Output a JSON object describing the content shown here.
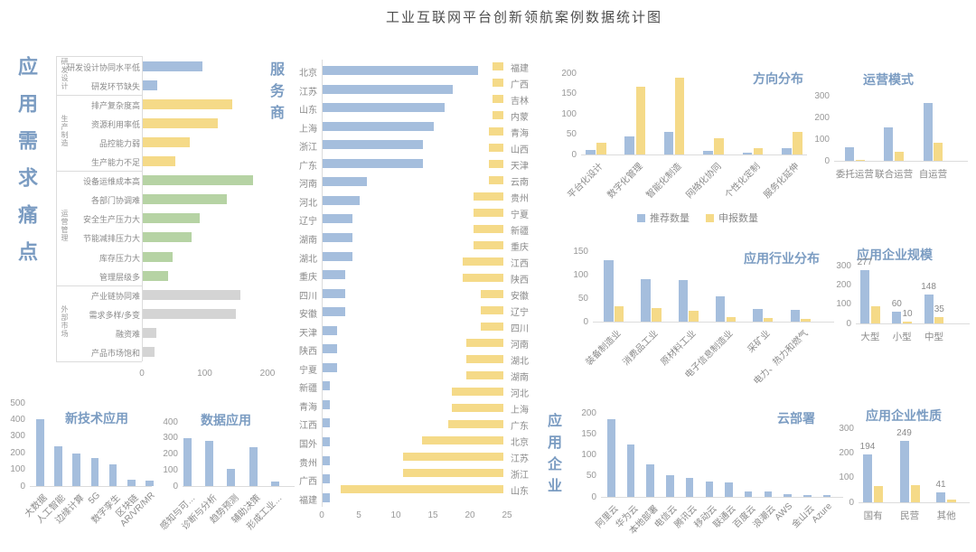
{
  "page_title": "工业互联网平台创新领航案例数据统计图",
  "colors": {
    "bar_blue": "#a5bedd",
    "bar_yellow": "#f5da88",
    "bar_green": "#b6d3a4",
    "bar_gray": "#d4d4d4",
    "title_accent": "#7b9cc2",
    "axis_text": "#999999"
  },
  "legend": {
    "items": [
      {
        "label": "推荐数量",
        "color": "#a5bedd"
      },
      {
        "label": "申报数量",
        "color": "#f5da88"
      }
    ]
  },
  "chart_data": [
    {
      "id": "demand-pain-points",
      "type": "bar",
      "orientation": "horizontal",
      "title": "应用需求痛点",
      "xlim": [
        0,
        200
      ],
      "xticks": [
        0,
        100,
        200
      ],
      "groups": [
        {
          "name": "研发设计",
          "color": "#a5bedd",
          "items": [
            {
              "label": "研发设计协同水平低",
              "value": 95
            },
            {
              "label": "研发环节缺失",
              "value": 23
            }
          ]
        },
        {
          "name": "生产制造",
          "color": "#f5da88",
          "items": [
            {
              "label": "排产复杂度高",
              "value": 142
            },
            {
              "label": "资源利用率低",
              "value": 120
            },
            {
              "label": "品控能力弱",
              "value": 75
            },
            {
              "label": "生产能力不足",
              "value": 52
            }
          ]
        },
        {
          "name": "运营管理",
          "color": "#b6d3a4",
          "items": [
            {
              "label": "设备运维成本高",
              "value": 175
            },
            {
              "label": "各部门协调难",
              "value": 134
            },
            {
              "label": "安全生产压力大",
              "value": 90
            },
            {
              "label": "节能减排压力大",
              "value": 78
            },
            {
              "label": "库存压力大",
              "value": 48
            },
            {
              "label": "管理层级多",
              "value": 40
            }
          ]
        },
        {
          "name": "外部市场",
          "color": "#d4d4d4",
          "items": [
            {
              "label": "产业链协同难",
              "value": 155
            },
            {
              "label": "需求多样/多变",
              "value": 148
            },
            {
              "label": "融资难",
              "value": 21
            },
            {
              "label": "产品市场饱和",
              "value": 18
            }
          ]
        }
      ]
    },
    {
      "id": "service-providers",
      "type": "bar",
      "orientation": "horizontal",
      "title": "服务商",
      "color": "#a5bedd",
      "xlim": [
        0,
        25
      ],
      "xticks": [
        0,
        5,
        10,
        15,
        20,
        25
      ],
      "categories": [
        "北京",
        "江苏",
        "山东",
        "上海",
        "浙江",
        "广东",
        "河南",
        "河北",
        "辽宁",
        "湖南",
        "湖北",
        "重庆",
        "四川",
        "安徽",
        "天津",
        "陕西",
        "宁夏",
        "新疆",
        "青海",
        "江西",
        "国外",
        "贵州",
        "广西",
        "福建"
      ],
      "values": [
        21,
        17.5,
        16.5,
        15,
        13.5,
        13.5,
        6,
        5,
        4,
        4,
        4,
        3,
        3,
        3,
        2,
        2,
        2,
        1,
        1,
        1,
        1,
        1,
        1,
        1
      ]
    },
    {
      "id": "application-enterprises",
      "type": "bar",
      "orientation": "horizontal-mirrored",
      "title": "应用企业",
      "color": "#f5da88",
      "xlim": [
        0,
        25
      ],
      "categories": [
        "福建",
        "广西",
        "吉林",
        "内蒙",
        "青海",
        "山西",
        "天津",
        "云南",
        "贵州",
        "宁夏",
        "新疆",
        "重庆",
        "江西",
        "陕西",
        "安徽",
        "辽宁",
        "四川",
        "河南",
        "湖北",
        "湖南",
        "河北",
        "上海",
        "广东",
        "北京",
        "江苏",
        "浙江",
        "山东"
      ],
      "values": [
        1.5,
        1.5,
        1.5,
        1.5,
        2,
        2,
        2,
        2,
        4,
        4,
        4,
        4,
        5.5,
        5.5,
        3,
        3,
        3,
        5,
        5,
        5,
        7,
        7,
        7.5,
        11,
        13.5,
        13.5,
        22
      ]
    },
    {
      "id": "direction-distribution",
      "type": "bar",
      "title": "方向分布",
      "ylim": [
        0,
        200
      ],
      "yticks": [
        0,
        50,
        100,
        150,
        200
      ],
      "categories": [
        "平台化设计",
        "数字化管理",
        "智能化制造",
        "网络化协同",
        "个性化定制",
        "服务化延伸"
      ],
      "series": [
        {
          "name": "推荐数量",
          "color": "#a5bedd",
          "values": [
            12,
            45,
            55,
            10,
            4,
            15
          ]
        },
        {
          "name": "申报数量",
          "color": "#f5da88",
          "values": [
            30,
            167,
            190,
            40,
            16,
            55
          ]
        }
      ]
    },
    {
      "id": "operation-mode",
      "type": "bar",
      "title": "运营模式",
      "ylim": [
        0,
        300
      ],
      "yticks": [
        0,
        100,
        200,
        300
      ],
      "categories": [
        "委托运营",
        "联合运营",
        "自运营"
      ],
      "series": [
        {
          "name": "推荐数量",
          "color": "#a5bedd",
          "values": [
            62,
            155,
            268
          ]
        },
        {
          "name": "申报数量",
          "color": "#f5da88",
          "values": [
            6,
            40,
            82
          ]
        }
      ]
    },
    {
      "id": "industry-distribution",
      "type": "bar",
      "title": "应用行业分布",
      "ylim": [
        0,
        150
      ],
      "yticks": [
        0,
        50,
        100,
        150
      ],
      "categories": [
        "装备制造业",
        "消费品工业",
        "原材料工业",
        "电子信息制造业",
        "采矿业",
        "电力、热力和燃气"
      ],
      "series": [
        {
          "name": "推荐数量",
          "color": "#a5bedd",
          "values": [
            131,
            90,
            88,
            54,
            26,
            25
          ]
        },
        {
          "name": "申报数量",
          "color": "#f5da88",
          "values": [
            32,
            29,
            23,
            10,
            8,
            6
          ]
        }
      ]
    },
    {
      "id": "enterprise-scale",
      "type": "bar",
      "title": "应用企业规模",
      "ylim": [
        0,
        300
      ],
      "yticks": [
        0,
        100,
        200,
        300
      ],
      "categories": [
        "大型",
        "小型",
        "中型"
      ],
      "series": [
        {
          "name": "推荐数量",
          "color": "#a5bedd",
          "values": [
            277,
            60,
            148
          ],
          "value_labels": [
            "277",
            "60",
            "148"
          ]
        },
        {
          "name": "申报数量",
          "color": "#f5da88",
          "values": [
            88,
            10,
            35
          ],
          "value_labels": [
            "",
            "10",
            "35"
          ]
        }
      ]
    },
    {
      "id": "cloud-deployment",
      "type": "bar",
      "title": "云部署",
      "color": "#a5bedd",
      "ylim": [
        0,
        200
      ],
      "yticks": [
        0,
        50,
        100,
        150,
        200
      ],
      "categories": [
        "阿里云",
        "华为云",
        "本地部署",
        "电信云",
        "腾讯云",
        "移动云",
        "联通云",
        "百度云",
        "浪潮云",
        "AWS",
        "金山云",
        "Azure"
      ],
      "values": [
        185,
        125,
        78,
        51,
        45,
        36,
        34,
        12,
        12,
        6,
        4,
        4
      ]
    },
    {
      "id": "enterprise-nature",
      "type": "bar",
      "title": "应用企业性质",
      "ylim": [
        0,
        300
      ],
      "yticks": [
        0,
        100,
        200,
        300
      ],
      "categories": [
        "国有",
        "民营",
        "其他"
      ],
      "series": [
        {
          "name": "推荐数量",
          "color": "#a5bedd",
          "values": [
            194,
            249,
            41
          ],
          "value_labels": [
            "194",
            "249",
            "41"
          ]
        },
        {
          "name": "申报数量",
          "color": "#f5da88",
          "values": [
            65,
            68,
            12
          ],
          "value_labels": [
            "",
            "",
            ""
          ]
        }
      ]
    },
    {
      "id": "new-technology-application",
      "type": "bar",
      "title": "新技术应用",
      "color": "#a5bedd",
      "ylim": [
        0,
        500
      ],
      "yticks": [
        0,
        100,
        200,
        300,
        400,
        500
      ],
      "categories": [
        "大数据",
        "人工智能",
        "边缘计算",
        "5G",
        "数字孪生",
        "区块链",
        "AR/VR/MR"
      ],
      "values": [
        400,
        240,
        195,
        170,
        130,
        38,
        35
      ]
    },
    {
      "id": "data-application",
      "type": "bar",
      "title": "数据应用",
      "color": "#a5bedd",
      "ylim": [
        0,
        400
      ],
      "yticks": [
        0,
        100,
        200,
        300,
        400
      ],
      "categories": [
        "感知与可…",
        "诊断与分析",
        "趋势预测",
        "辅助决策",
        "形成工业…"
      ],
      "values": [
        300,
        280,
        110,
        245,
        30
      ]
    }
  ]
}
